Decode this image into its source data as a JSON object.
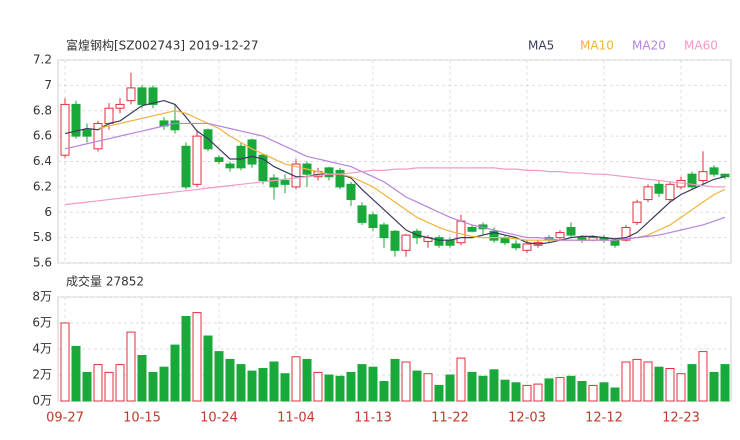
{
  "chart_data": [
    {
      "type": "candlestick",
      "title": "富煌钢构[SZ002743] 2019-12-27",
      "open": [
        6.45,
        6.85,
        6.65,
        6.5,
        6.7,
        6.82,
        6.88,
        6.98,
        6.98,
        6.72,
        6.72,
        6.52,
        6.22,
        6.65,
        6.43,
        6.38,
        6.52,
        6.57,
        6.45,
        6.27,
        6.25,
        6.2,
        6.38,
        6.28,
        6.35,
        6.33,
        6.22,
        6.05,
        5.98,
        5.9,
        5.85,
        5.7,
        5.85,
        5.77,
        5.8,
        5.78,
        5.76,
        5.88,
        5.9,
        5.85,
        5.8,
        5.75,
        5.7,
        5.74,
        5.8,
        5.8,
        5.88,
        5.8,
        5.78,
        5.8,
        5.78,
        5.78,
        5.92,
        6.1,
        6.22,
        6.1,
        6.2,
        6.3,
        6.25,
        6.35,
        6.3
      ],
      "high": [
        6.9,
        6.88,
        6.7,
        6.72,
        6.86,
        6.9,
        7.1,
        7.0,
        7.0,
        6.75,
        6.85,
        6.55,
        6.65,
        6.66,
        6.45,
        6.4,
        6.55,
        6.58,
        6.46,
        6.3,
        6.3,
        6.42,
        6.4,
        6.35,
        6.36,
        6.35,
        6.24,
        6.08,
        6.0,
        5.92,
        5.86,
        5.83,
        5.87,
        5.82,
        5.82,
        5.8,
        5.98,
        5.9,
        5.92,
        5.88,
        5.82,
        5.78,
        5.78,
        5.78,
        5.82,
        5.86,
        5.92,
        5.82,
        5.82,
        5.82,
        5.8,
        5.9,
        6.1,
        6.22,
        6.25,
        6.24,
        6.28,
        6.32,
        6.48,
        6.37,
        6.3
      ],
      "low": [
        6.43,
        6.58,
        6.55,
        6.48,
        6.65,
        6.78,
        6.85,
        6.82,
        6.82,
        6.65,
        6.62,
        6.18,
        6.2,
        6.48,
        6.38,
        6.32,
        6.33,
        6.35,
        6.22,
        6.1,
        6.15,
        6.18,
        6.2,
        6.25,
        6.25,
        6.18,
        6.05,
        5.9,
        5.85,
        5.72,
        5.65,
        5.65,
        5.75,
        5.72,
        5.72,
        5.72,
        5.74,
        5.84,
        5.82,
        5.76,
        5.74,
        5.7,
        5.68,
        5.72,
        5.76,
        5.78,
        5.8,
        5.76,
        5.77,
        5.76,
        5.72,
        5.77,
        5.9,
        6.08,
        6.12,
        6.08,
        6.18,
        6.18,
        6.22,
        6.28,
        6.26
      ],
      "close": [
        6.85,
        6.6,
        6.6,
        6.7,
        6.82,
        6.85,
        6.98,
        6.85,
        6.85,
        6.68,
        6.65,
        6.2,
        6.6,
        6.5,
        6.4,
        6.35,
        6.35,
        6.38,
        6.25,
        6.2,
        6.22,
        6.38,
        6.3,
        6.32,
        6.28,
        6.2,
        6.1,
        5.92,
        5.88,
        5.8,
        5.7,
        5.82,
        5.8,
        5.8,
        5.74,
        5.74,
        5.93,
        5.85,
        5.87,
        5.78,
        5.76,
        5.72,
        5.75,
        5.76,
        5.78,
        5.84,
        5.82,
        5.78,
        5.8,
        5.78,
        5.74,
        5.88,
        6.08,
        6.2,
        6.15,
        6.22,
        6.25,
        6.2,
        6.32,
        6.3,
        6.28
      ],
      "series": [
        {
          "name": "MA5",
          "color": "#3b3b5c",
          "values": [
            6.62,
            6.64,
            6.66,
            6.65,
            6.7,
            6.72,
            6.78,
            6.84,
            6.86,
            6.88,
            6.85,
            6.75,
            6.64,
            6.58,
            6.5,
            6.42,
            6.42,
            6.44,
            6.42,
            6.36,
            6.32,
            6.28,
            6.28,
            6.3,
            6.3,
            6.3,
            6.27,
            6.18,
            6.1,
            6.02,
            5.94,
            5.86,
            5.82,
            5.8,
            5.78,
            5.78,
            5.8,
            5.8,
            5.82,
            5.84,
            5.82,
            5.8,
            5.76,
            5.75,
            5.76,
            5.78,
            5.8,
            5.81,
            5.81,
            5.8,
            5.79,
            5.8,
            5.84,
            5.92,
            6.0,
            6.08,
            6.14,
            6.18,
            6.22,
            6.26,
            6.28
          ]
        },
        {
          "name": "MA10",
          "color": "#f0b43c",
          "values": [
            null,
            null,
            null,
            6.66,
            6.68,
            6.7,
            6.72,
            6.74,
            6.76,
            6.78,
            6.8,
            6.78,
            6.74,
            6.7,
            6.66,
            6.6,
            6.55,
            6.5,
            6.46,
            6.42,
            6.38,
            6.36,
            6.34,
            6.32,
            6.3,
            6.3,
            6.28,
            6.24,
            6.2,
            6.14,
            6.08,
            6.02,
            5.96,
            5.92,
            5.88,
            5.85,
            5.83,
            5.81,
            5.8,
            5.8,
            5.8,
            5.79,
            5.78,
            5.78,
            5.78,
            5.78,
            5.78,
            5.78,
            5.78,
            5.78,
            5.78,
            5.79,
            5.8,
            5.82,
            5.86,
            5.9,
            5.96,
            6.02,
            6.08,
            6.14,
            6.18
          ]
        },
        {
          "name": "MA20",
          "color": "#b584e0",
          "values": [
            6.5,
            6.52,
            6.54,
            6.56,
            6.58,
            6.6,
            6.62,
            6.64,
            6.66,
            6.68,
            6.7,
            6.7,
            6.7,
            6.7,
            6.68,
            6.66,
            6.64,
            6.62,
            6.6,
            6.56,
            6.52,
            6.48,
            6.44,
            6.42,
            6.4,
            6.38,
            6.36,
            6.32,
            6.28,
            6.24,
            6.18,
            6.12,
            6.08,
            6.04,
            6.0,
            5.96,
            5.93,
            5.9,
            5.88,
            5.86,
            5.84,
            5.82,
            5.8,
            5.8,
            5.79,
            5.78,
            5.78,
            5.78,
            5.78,
            5.78,
            5.78,
            5.79,
            5.8,
            5.81,
            5.82,
            5.84,
            5.86,
            5.88,
            5.9,
            5.93,
            5.96
          ]
        },
        {
          "name": "MA60",
          "color": "#f29ac6",
          "values": [
            6.06,
            6.07,
            6.08,
            6.09,
            6.1,
            6.11,
            6.12,
            6.13,
            6.14,
            6.15,
            6.16,
            6.17,
            6.18,
            6.19,
            6.2,
            6.21,
            6.22,
            6.23,
            6.24,
            6.25,
            6.26,
            6.27,
            6.28,
            6.29,
            6.3,
            6.3,
            6.31,
            6.32,
            6.33,
            6.33,
            6.34,
            6.34,
            6.35,
            6.35,
            6.35,
            6.35,
            6.35,
            6.35,
            6.35,
            6.35,
            6.34,
            6.34,
            6.33,
            6.33,
            6.32,
            6.32,
            6.31,
            6.31,
            6.3,
            6.3,
            6.29,
            6.28,
            6.27,
            6.26,
            6.25,
            6.24,
            6.23,
            6.22,
            6.21,
            6.2,
            6.2
          ]
        }
      ],
      "up_color": "#e0303c",
      "down_color": "#19a83a",
      "ylim": [
        5.6,
        7.2
      ],
      "yticks": [
        5.6,
        5.8,
        6,
        6.2,
        6.4,
        6.6,
        6.8,
        7,
        7.2
      ],
      "grid": true
    },
    {
      "type": "bar",
      "title": "成交量 27852",
      "categories": [
        "09-27",
        null,
        null,
        null,
        null,
        null,
        null,
        "10-15",
        null,
        null,
        null,
        null,
        null,
        null,
        "10-24",
        null,
        null,
        null,
        null,
        null,
        null,
        "11-04",
        null,
        null,
        null,
        null,
        null,
        null,
        "11-13",
        null,
        null,
        null,
        null,
        null,
        null,
        "11-22",
        null,
        null,
        null,
        null,
        null,
        null,
        "12-03",
        null,
        null,
        null,
        null,
        null,
        null,
        "12-12",
        null,
        null,
        null,
        null,
        null,
        null,
        "12-23",
        null,
        null,
        null,
        null
      ],
      "values": [
        6.0,
        4.2,
        2.2,
        2.8,
        2.2,
        2.8,
        5.3,
        3.5,
        2.2,
        2.6,
        4.3,
        6.5,
        6.8,
        5.0,
        3.8,
        3.2,
        2.8,
        2.3,
        2.5,
        3.0,
        2.1,
        3.4,
        3.2,
        2.2,
        2.0,
        1.9,
        2.2,
        2.8,
        2.6,
        1.5,
        3.2,
        3.0,
        2.3,
        2.1,
        1.2,
        2.0,
        3.3,
        2.2,
        1.9,
        2.4,
        1.6,
        1.4,
        1.2,
        1.3,
        1.7,
        1.8,
        1.9,
        1.5,
        1.2,
        1.4,
        1.0,
        3.0,
        3.2,
        3.0,
        2.6,
        2.5,
        2.1,
        2.8,
        3.8,
        2.2,
        2.8
      ],
      "ylim": [
        0,
        8
      ],
      "yticks": [
        {
          "value": 0,
          "label": "0万"
        },
        {
          "value": 2,
          "label": "2万"
        },
        {
          "value": 4,
          "label": "4万"
        },
        {
          "value": 6,
          "label": "6万"
        },
        {
          "value": 8,
          "label": "8万"
        }
      ],
      "grid": true
    }
  ]
}
